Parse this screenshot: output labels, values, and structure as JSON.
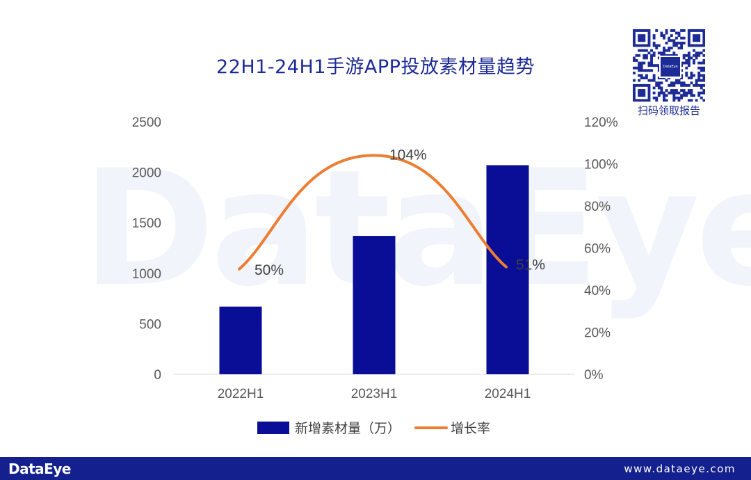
{
  "watermark_text": "DataEye",
  "header": {
    "title": "22H1-24H1手游APP投放素材量趋势"
  },
  "qr": {
    "logo_text": "DataEye",
    "caption": "扫码领取报告"
  },
  "footer": {
    "logo": "DataEye",
    "url": "www.dataeye.com"
  },
  "chart_data": {
    "type": "bar",
    "title": "22H1-24H1手游APP投放素材量趋势",
    "categories": [
      "2022H1",
      "2023H1",
      "2024H1"
    ],
    "y_left": {
      "ticks": [
        "0",
        "500",
        "1000",
        "1500",
        "2000",
        "2500"
      ],
      "ylim": [
        0,
        2500
      ]
    },
    "y_right": {
      "ticks": [
        "0%",
        "20%",
        "40%",
        "60%",
        "80%",
        "100%",
        "120%"
      ],
      "ylim": [
        0,
        120
      ]
    },
    "series": [
      {
        "name": "新增素材量（万）",
        "type": "bar",
        "axis": "left",
        "values": [
          670,
          1370,
          2070
        ],
        "color": "#0a0e96"
      },
      {
        "name": "增长率",
        "type": "line",
        "axis": "right",
        "smooth": true,
        "values": [
          50,
          104,
          51
        ],
        "labels": [
          "50%",
          "104%",
          "51%"
        ],
        "color": "#ed7d31"
      }
    ],
    "grid": false,
    "legend_position": "bottom"
  }
}
